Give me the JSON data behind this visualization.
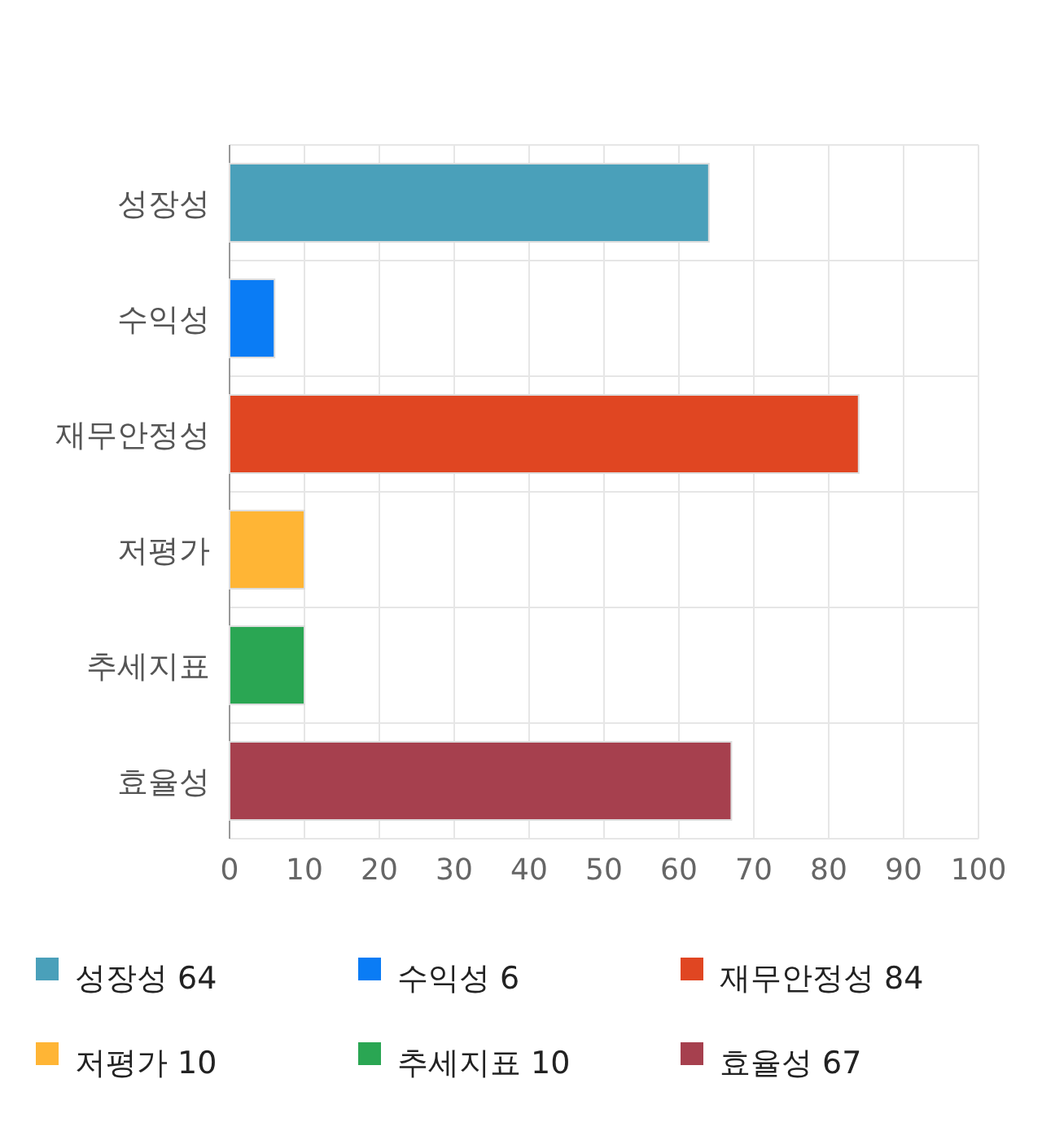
{
  "chart_data": {
    "type": "bar",
    "orientation": "horizontal",
    "stacked": true,
    "categories": [
      "성장성",
      "수익성",
      "재무안정성",
      "저평가",
      "추세지표",
      "효율성"
    ],
    "series": [
      {
        "name": "성장성 64",
        "color": "#4aa0ba",
        "values": [
          64,
          null,
          null,
          null,
          null,
          null
        ]
      },
      {
        "name": "수익성 6",
        "color": "#0a7cf5",
        "values": [
          null,
          6,
          null,
          null,
          null,
          null
        ]
      },
      {
        "name": "재무안정성 84",
        "color": "#e04622",
        "values": [
          null,
          null,
          84,
          null,
          null,
          null
        ]
      },
      {
        "name": "저평가 10",
        "color": "#ffb535",
        "values": [
          null,
          null,
          null,
          10,
          null,
          null
        ]
      },
      {
        "name": "추세지표 10",
        "color": "#2aa653",
        "values": [
          null,
          null,
          null,
          null,
          10,
          null
        ]
      },
      {
        "name": "효율성 67",
        "color": "#a6404e",
        "values": [
          null,
          null,
          null,
          null,
          null,
          67
        ]
      }
    ],
    "xlim": [
      0,
      100
    ],
    "xticks": [
      0,
      10,
      20,
      30,
      40,
      50,
      60,
      70,
      80,
      90,
      100
    ],
    "grid": true,
    "legend": "bottom"
  }
}
